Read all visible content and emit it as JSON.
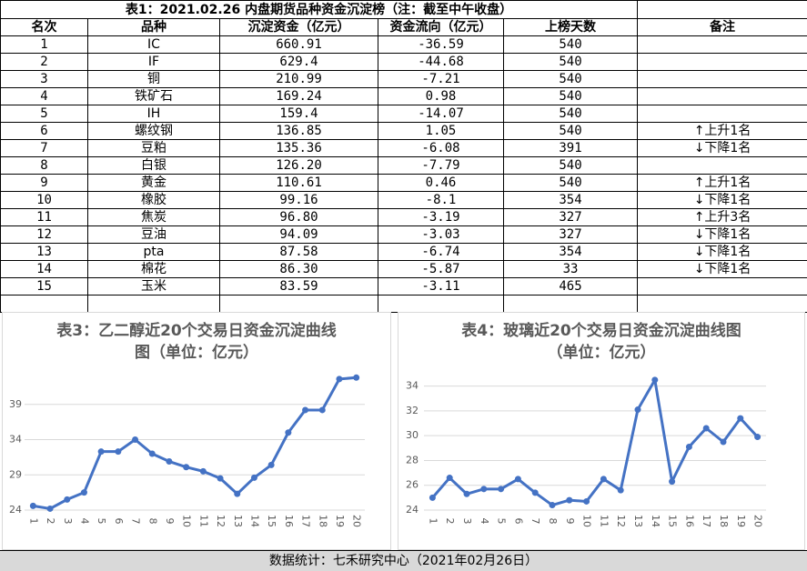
{
  "table": {
    "title": "表1：2021.02.26 内盘期货品种资金沉淀榜（注：截至中午收盘）",
    "header": [
      "名次",
      "品种",
      "沉淀资金（亿元）",
      "资金流向（亿元）",
      "上榜天数",
      "备注"
    ],
    "rows": [
      [
        "1",
        "IC",
        "660.91",
        "-36.59",
        "540",
        ""
      ],
      [
        "2",
        "IF",
        "629.4",
        "-44.68",
        "540",
        ""
      ],
      [
        "3",
        "铜",
        "210.99",
        "-7.21",
        "540",
        ""
      ],
      [
        "4",
        "铁矿石",
        "169.24",
        "0.98",
        "540",
        ""
      ],
      [
        "5",
        "IH",
        "159.4",
        "-14.07",
        "540",
        ""
      ],
      [
        "6",
        "螺纹钢",
        "136.85",
        "1.05",
        "540",
        "↑上升1名"
      ],
      [
        "7",
        "豆粕",
        "135.36",
        "-6.08",
        "391",
        "↓下降1名"
      ],
      [
        "8",
        "白银",
        "126.20",
        "-7.79",
        "540",
        ""
      ],
      [
        "9",
        "黄金",
        "110.61",
        "0.46",
        "540",
        "↑上升1名"
      ],
      [
        "10",
        "橡胶",
        "99.16",
        "-8.1",
        "354",
        "↓下降1名"
      ],
      [
        "11",
        "焦炭",
        "96.80",
        "-3.19",
        "327",
        "↑上升3名"
      ],
      [
        "12",
        "豆油",
        "94.09",
        "-3.03",
        "327",
        "↓下降1名"
      ],
      [
        "13",
        "pta",
        "87.58",
        "-6.74",
        "354",
        "↓下降1名"
      ],
      [
        "14",
        "棉花",
        "86.30",
        "-5.87",
        "33",
        "↓下降1名"
      ],
      [
        "15",
        "玉米",
        "83.59",
        "-3.11",
        "465",
        ""
      ]
    ]
  },
  "chart_data": [
    {
      "type": "line",
      "title": [
        "表3：乙二醇近20个交易日资金沉淀曲线",
        "图（单位：亿元）"
      ],
      "categories": [
        "1",
        "2",
        "3",
        "4",
        "5",
        "6",
        "7",
        "8",
        "9",
        "10",
        "11",
        "12",
        "13",
        "14",
        "15",
        "16",
        "17",
        "18",
        "19",
        "20"
      ],
      "values": [
        24.6,
        24.2,
        25.5,
        26.5,
        32.3,
        32.3,
        34.0,
        32.0,
        30.9,
        30.1,
        29.5,
        28.5,
        26.3,
        28.6,
        30.4,
        35.0,
        38.2,
        38.2,
        42.6,
        42.8
      ],
      "color": "#4472c4",
      "ylim": [
        24,
        44
      ],
      "yticks": [
        24,
        29,
        34,
        39
      ],
      "grid": true
    },
    {
      "type": "line",
      "title": [
        "表4：玻璃近20个交易日资金沉淀曲线图",
        "（单位：亿元）"
      ],
      "categories": [
        "1",
        "2",
        "3",
        "4",
        "5",
        "6",
        "7",
        "8",
        "9",
        "10",
        "11",
        "12",
        "13",
        "14",
        "15",
        "16",
        "17",
        "18",
        "19",
        "20"
      ],
      "values": [
        25.0,
        26.6,
        25.3,
        25.7,
        25.7,
        26.5,
        25.4,
        24.4,
        24.8,
        24.7,
        26.5,
        25.6,
        32.1,
        34.5,
        26.3,
        29.1,
        30.6,
        29.5,
        31.4,
        29.9
      ],
      "color": "#4472c4",
      "ylim": [
        24,
        35
      ],
      "yticks": [
        24,
        26,
        28,
        30,
        32,
        34
      ],
      "grid": true
    }
  ],
  "footer": "数据统计：七禾研究中心（2021年02月26日）"
}
